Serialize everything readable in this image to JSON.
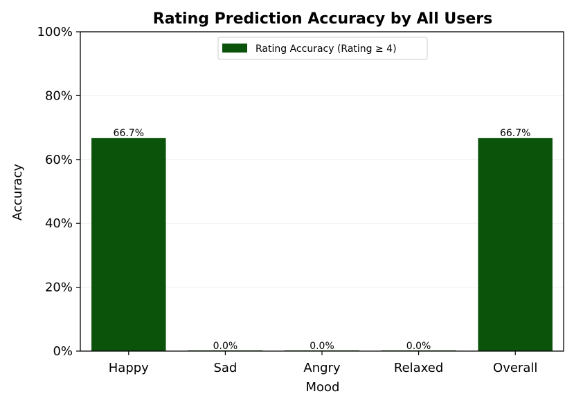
{
  "chart_data": {
    "type": "bar",
    "title": "Rating Prediction Accuracy by All Users",
    "xlabel": "Mood",
    "ylabel": "Accuracy",
    "categories": [
      "Happy",
      "Sad",
      "Angry",
      "Relaxed",
      "Overall"
    ],
    "series": [
      {
        "name": "Rating Accuracy (Rating ≥ 4)",
        "values": [
          66.7,
          0.0,
          0.0,
          0.0,
          66.7
        ],
        "color": "#0b530b"
      }
    ],
    "data_labels": [
      "66.7%",
      "0.0%",
      "0.0%",
      "0.0%",
      "66.7%"
    ],
    "ylim": [
      0,
      100
    ],
    "yticks": [
      0,
      20,
      40,
      60,
      80,
      100
    ],
    "ytick_labels": [
      "0%",
      "20%",
      "40%",
      "60%",
      "80%",
      "100%"
    ],
    "grid": "horizontal, faint",
    "legend_position": "top-center"
  }
}
